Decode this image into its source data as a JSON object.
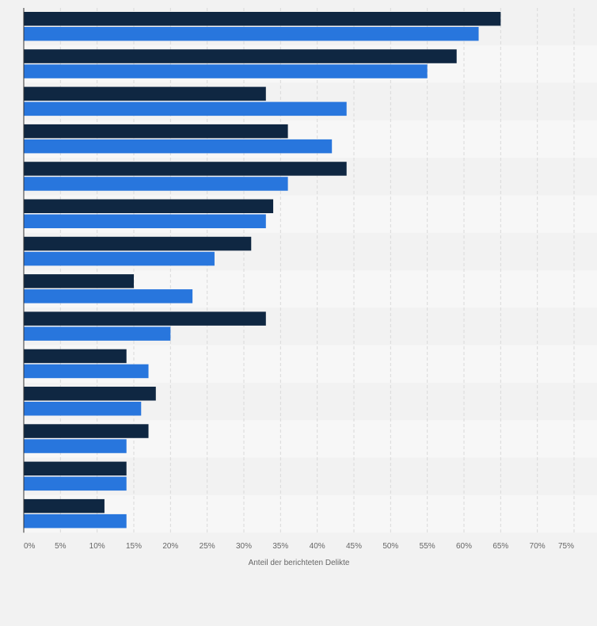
{
  "chart_data": {
    "type": "bar",
    "orientation": "horizontal",
    "title": "",
    "xlabel": "Anteil der berichteten Delikte",
    "ylabel": "",
    "xlim": [
      0,
      75
    ],
    "x_ticks": [
      "0%",
      "5%",
      "10%",
      "15%",
      "20%",
      "25%",
      "30%",
      "35%",
      "40%",
      "45%",
      "50%",
      "55%",
      "60%",
      "65%",
      "70%",
      "75%"
    ],
    "grid": true,
    "legend": "none",
    "categories": [
      "",
      "",
      "",
      "",
      "",
      "",
      "",
      "",
      "",
      "",
      "",
      "",
      "",
      ""
    ],
    "series": [
      {
        "color": "#0f2742",
        "values": [
          65,
          59,
          33,
          36,
          44,
          34,
          31,
          15,
          33,
          14,
          18,
          17,
          14,
          11
        ]
      },
      {
        "color": "#2876dd",
        "values": [
          62,
          55,
          44,
          42,
          36,
          33,
          26,
          23,
          20,
          17,
          16,
          14,
          14,
          14
        ]
      }
    ]
  }
}
